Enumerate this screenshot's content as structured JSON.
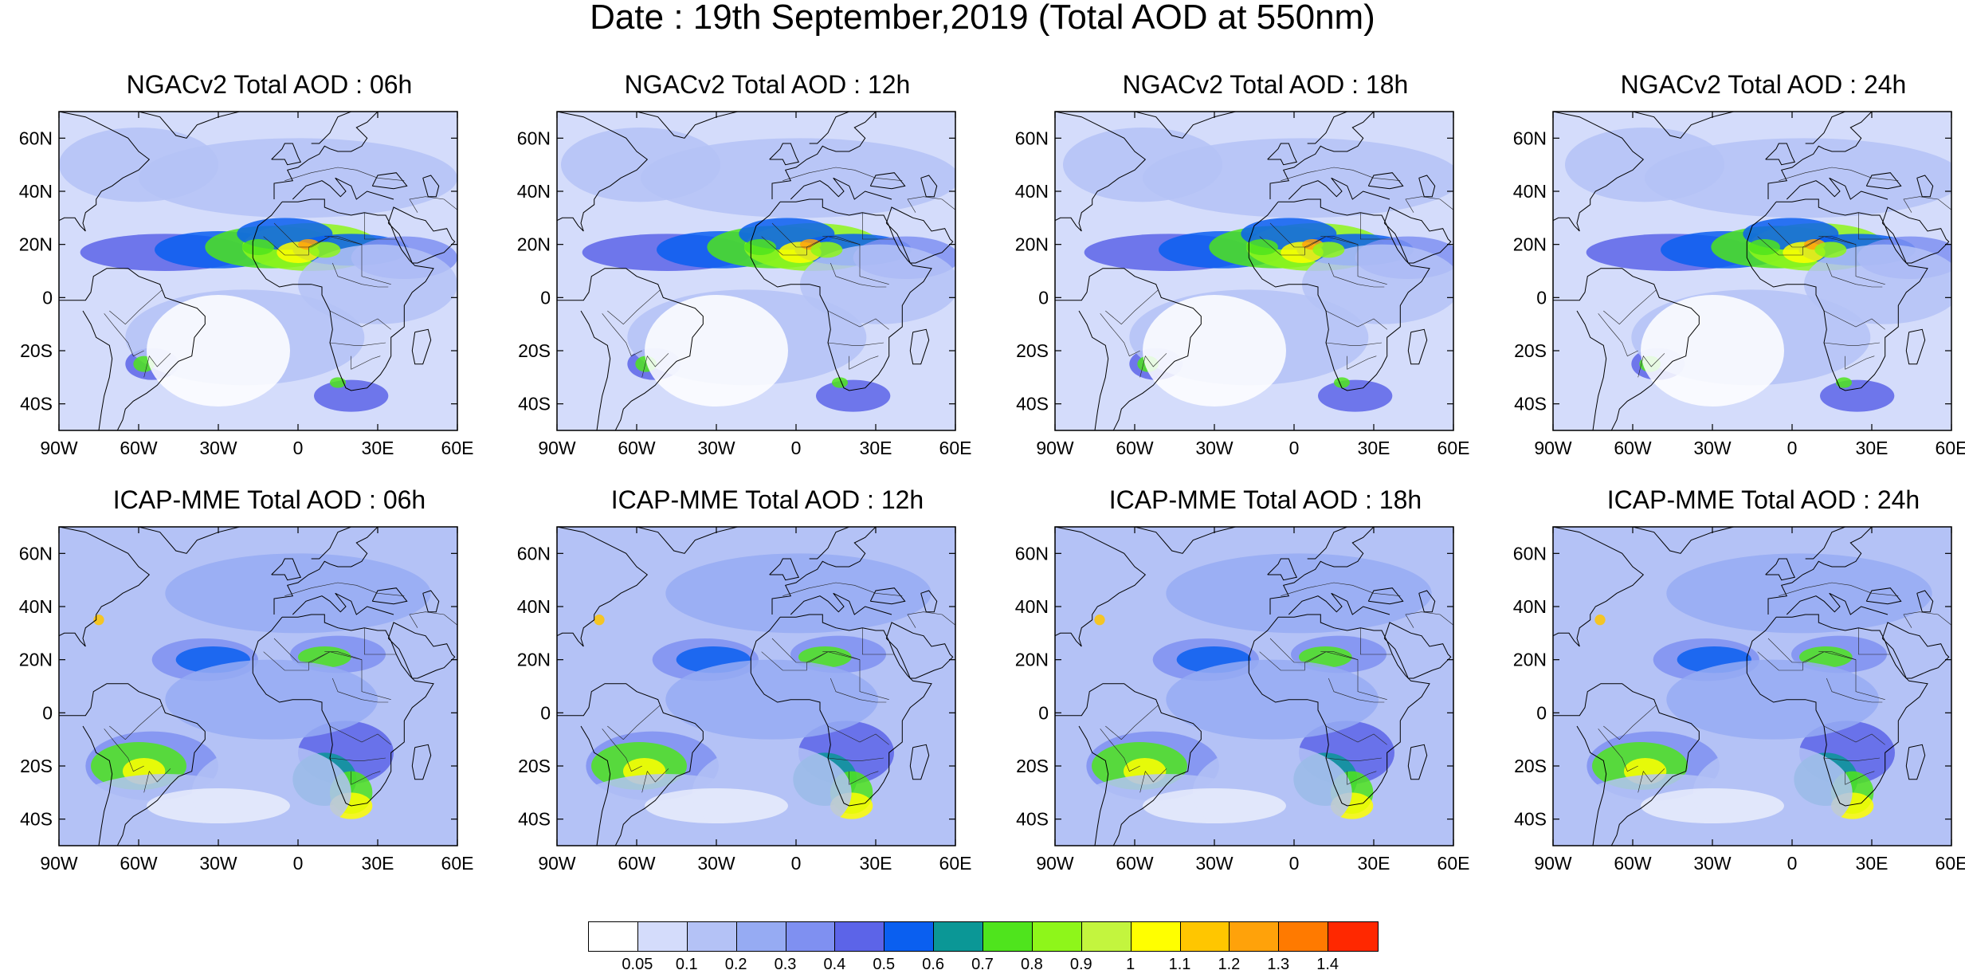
{
  "title": "Date : 19th September,2019 (Total AOD at 550nm)",
  "panels": [
    {
      "title": "NGACv2 Total AOD : 06h",
      "model": "NGACv2",
      "lead": "06h"
    },
    {
      "title": "NGACv2 Total AOD : 12h",
      "model": "NGACv2",
      "lead": "12h"
    },
    {
      "title": "NGACv2 Total AOD : 18h",
      "model": "NGACv2",
      "lead": "18h"
    },
    {
      "title": "NGACv2 Total AOD : 24h",
      "model": "NGACv2",
      "lead": "24h"
    },
    {
      "title": "ICAP-MME Total AOD : 06h",
      "model": "ICAP-MME",
      "lead": "06h"
    },
    {
      "title": "ICAP-MME Total AOD : 12h",
      "model": "ICAP-MME",
      "lead": "12h"
    },
    {
      "title": "ICAP-MME Total AOD : 18h",
      "model": "ICAP-MME",
      "lead": "18h"
    },
    {
      "title": "ICAP-MME Total AOD : 24h",
      "model": "ICAP-MME",
      "lead": "24h"
    }
  ],
  "map": {
    "lon_range": [
      -90,
      60
    ],
    "lat_range": [
      -50,
      70
    ],
    "lon_ticks": [
      {
        "value": -90,
        "label": "90W"
      },
      {
        "value": -60,
        "label": "60W"
      },
      {
        "value": -30,
        "label": "30W"
      },
      {
        "value": 0,
        "label": "0"
      },
      {
        "value": 30,
        "label": "30E"
      },
      {
        "value": 60,
        "label": "60E"
      }
    ],
    "lat_ticks": [
      {
        "value": 60,
        "label": "60N"
      },
      {
        "value": 40,
        "label": "40N"
      },
      {
        "value": 20,
        "label": "20N"
      },
      {
        "value": 0,
        "label": "0"
      },
      {
        "value": -20,
        "label": "20S"
      },
      {
        "value": -40,
        "label": "40S"
      }
    ]
  },
  "colorbar": {
    "colors": [
      "#ffffff",
      "#d4dcfb",
      "#b4c2f6",
      "#96abf3",
      "#7f90f1",
      "#5c64e8",
      "#0a5ff0",
      "#0b9796",
      "#4fe41d",
      "#8ef61a",
      "#c3f53e",
      "#ffff00",
      "#ffc600",
      "#ffa20a",
      "#ff7a00",
      "#ff2800"
    ],
    "labels": [
      "0.05",
      "0.1",
      "0.2",
      "0.3",
      "0.4",
      "0.5",
      "0.6",
      "0.7",
      "0.8",
      "0.9",
      "1",
      "1.1",
      "1.2",
      "1.3",
      "1.4"
    ]
  }
}
